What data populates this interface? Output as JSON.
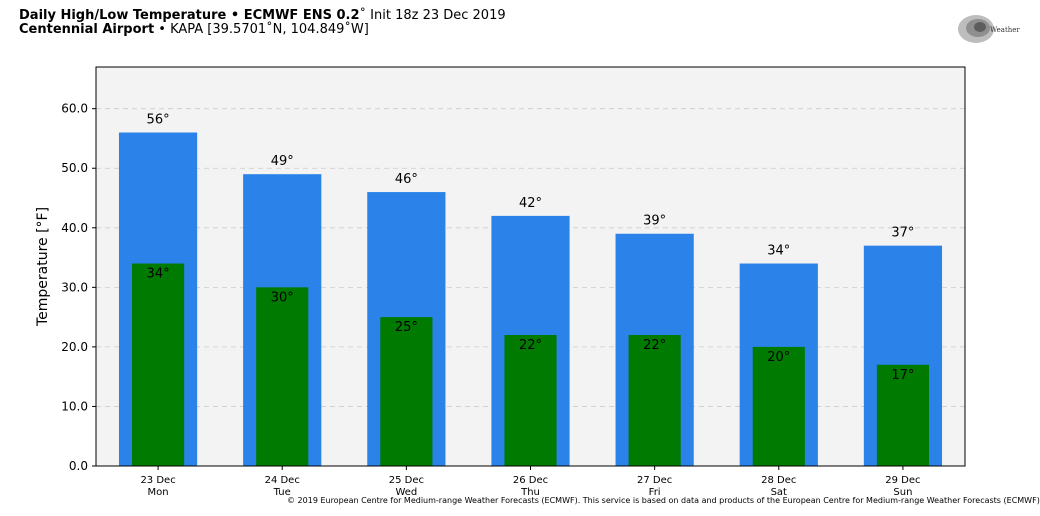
{
  "header": {
    "line1_bold": "Daily High/Low Temperature • ECMWF ENS 0.2",
    "line1_deg": "˚",
    "line1_rest": " Init 18z 23 Dec 2019",
    "line2_bold": "Centennial Airport",
    "line2_rest": " • KAPA [39.5701˚N, 104.849˚W]"
  },
  "logo": {
    "text": "WeatherBELL"
  },
  "copyright": "© 2019 European Centre for Medium-range Weather Forecasts (ECMWF). This service is based on data and products of the European Centre for Medium-range Weather Forecasts (ECMWF)",
  "colors": {
    "high": "#2b83ea",
    "low": "#007a00",
    "plot_bg": "#f3f3f3",
    "grid": "#cccccc"
  },
  "chart_data": {
    "type": "bar",
    "title": "Daily High/Low Temperature • ECMWF ENS 0.2˚ Init 18z 23 Dec 2019",
    "xlabel": "",
    "ylabel": "Temperature [°F]",
    "ylim": [
      0,
      67
    ],
    "yticks": [
      "0.0",
      "10.0",
      "20.0",
      "30.0",
      "40.0",
      "50.0",
      "60.0"
    ],
    "grid": true,
    "categories": [
      [
        "23 Dec",
        "Mon"
      ],
      [
        "24 Dec",
        "Tue"
      ],
      [
        "25 Dec",
        "Wed"
      ],
      [
        "26 Dec",
        "Thu"
      ],
      [
        "27 Dec",
        "Fri"
      ],
      [
        "28 Dec",
        "Sat"
      ],
      [
        "29 Dec",
        "Sun"
      ]
    ],
    "series": [
      {
        "values": [
          56,
          49,
          46,
          42,
          39,
          34,
          37
        ],
        "labels": [
          "56°",
          "49°",
          "46°",
          "42°",
          "39°",
          "34°",
          "37°"
        ]
      },
      {
        "values": [
          34,
          30,
          25,
          22,
          22,
          20,
          17
        ],
        "labels": [
          "34°",
          "30°",
          "25°",
          "22°",
          "22°",
          "20°",
          "17°"
        ]
      }
    ]
  }
}
